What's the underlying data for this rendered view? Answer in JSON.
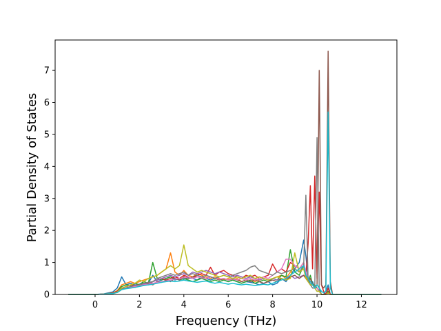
{
  "chart_data": {
    "type": "line",
    "title": "",
    "xlabel": "Frequency (THz)",
    "ylabel": "Partial Density of States",
    "xlim": [
      -1.8,
      13.6
    ],
    "ylim": [
      0,
      7.95
    ],
    "xticks": [
      0,
      2,
      4,
      6,
      8,
      10,
      12
    ],
    "yticks": [
      0,
      1,
      2,
      3,
      4,
      5,
      6,
      7
    ],
    "grid": false,
    "legend": "none",
    "x": [
      -1.2,
      0.0,
      0.4,
      0.8,
      1.0,
      1.2,
      1.4,
      1.6,
      1.8,
      2.0,
      2.2,
      2.4,
      2.6,
      2.8,
      3.0,
      3.2,
      3.4,
      3.6,
      3.8,
      4.0,
      4.2,
      4.4,
      4.6,
      4.8,
      5.0,
      5.2,
      5.4,
      5.6,
      5.8,
      6.0,
      6.2,
      6.4,
      6.6,
      6.8,
      7.0,
      7.2,
      7.4,
      7.6,
      7.8,
      8.0,
      8.2,
      8.4,
      8.6,
      8.8,
      9.0,
      9.2,
      9.4,
      9.5,
      9.6,
      9.7,
      9.8,
      9.9,
      10.0,
      10.1,
      10.2,
      10.3,
      10.4,
      10.5,
      10.6,
      10.7,
      10.8,
      11.0,
      12.0,
      12.9
    ],
    "series": [
      {
        "color": "#1f77b4",
        "values": [
          0,
          0,
          0.02,
          0.08,
          0.2,
          0.55,
          0.3,
          0.35,
          0.3,
          0.32,
          0.4,
          0.35,
          0.6,
          0.4,
          0.45,
          0.5,
          0.55,
          0.45,
          0.5,
          0.48,
          0.52,
          0.5,
          0.45,
          0.55,
          0.5,
          0.45,
          0.5,
          0.48,
          0.45,
          0.4,
          0.45,
          0.4,
          0.35,
          0.4,
          0.38,
          0.35,
          0.3,
          0.35,
          0.4,
          0.3,
          0.35,
          0.5,
          0.4,
          0.6,
          0.8,
          1.0,
          1.7,
          1.2,
          0.5,
          0.3,
          0.4,
          0.2,
          0.3,
          0.2,
          0,
          0,
          0.1,
          0.3,
          0,
          0,
          0,
          0,
          0,
          0
        ]
      },
      {
        "color": "#ff7f0e",
        "values": [
          0,
          0,
          0.01,
          0.05,
          0.12,
          0.3,
          0.35,
          0.4,
          0.35,
          0.4,
          0.45,
          0.5,
          0.55,
          0.6,
          0.7,
          0.8,
          1.3,
          0.7,
          0.6,
          0.75,
          0.6,
          0.55,
          0.65,
          0.6,
          0.55,
          0.5,
          0.55,
          0.5,
          0.45,
          0.5,
          0.45,
          0.5,
          0.4,
          0.45,
          0.5,
          0.4,
          0.45,
          0.5,
          0.45,
          0.5,
          0.55,
          0.6,
          0.5,
          0.7,
          0.9,
          0.8,
          1.0,
          0.6,
          0.4,
          0.5,
          0.3,
          0.2,
          0.2,
          0.1,
          0,
          0,
          0,
          0.1,
          0,
          0,
          0,
          0,
          0,
          0
        ]
      },
      {
        "color": "#2ca02c",
        "values": [
          0,
          0,
          0.01,
          0.04,
          0.1,
          0.25,
          0.3,
          0.28,
          0.35,
          0.3,
          0.4,
          0.35,
          1.0,
          0.5,
          0.45,
          0.5,
          0.55,
          0.5,
          0.45,
          0.5,
          0.45,
          0.4,
          0.45,
          0.5,
          0.45,
          0.4,
          0.45,
          0.4,
          0.45,
          0.4,
          0.45,
          0.4,
          0.35,
          0.4,
          0.45,
          0.35,
          0.4,
          0.45,
          0.4,
          0.5,
          0.45,
          0.6,
          0.55,
          1.4,
          0.7,
          0.6,
          0.9,
          0.5,
          0.4,
          0.6,
          0.3,
          0.3,
          0.2,
          0.1,
          0,
          0,
          0,
          0.1,
          0,
          0,
          0,
          0,
          0,
          0
        ]
      },
      {
        "color": "#d62728",
        "values": [
          0,
          0,
          0.01,
          0.04,
          0.1,
          0.2,
          0.25,
          0.3,
          0.28,
          0.3,
          0.35,
          0.3,
          0.4,
          0.45,
          0.5,
          0.45,
          0.5,
          0.55,
          0.5,
          0.6,
          0.55,
          0.5,
          0.6,
          0.65,
          0.6,
          0.85,
          0.6,
          0.7,
          0.75,
          0.65,
          0.6,
          0.55,
          0.5,
          0.6,
          0.55,
          0.6,
          0.5,
          0.55,
          0.6,
          0.95,
          0.7,
          0.8,
          0.7,
          1.0,
          0.9,
          0.8,
          1.0,
          0.6,
          1.6,
          3.4,
          0.8,
          3.7,
          0.5,
          3.2,
          0.3,
          0.1,
          0,
          0.2,
          0,
          0,
          0,
          0,
          0,
          0
        ]
      },
      {
        "color": "#9467bd",
        "values": [
          0,
          0,
          0.01,
          0.03,
          0.08,
          0.2,
          0.25,
          0.22,
          0.3,
          0.28,
          0.32,
          0.35,
          0.4,
          0.45,
          0.5,
          0.55,
          0.6,
          0.55,
          0.6,
          0.65,
          0.6,
          0.7,
          0.65,
          0.7,
          0.75,
          0.7,
          0.65,
          0.7,
          0.65,
          0.6,
          0.55,
          0.6,
          0.55,
          0.5,
          0.55,
          0.5,
          0.45,
          0.5,
          0.45,
          0.5,
          0.45,
          0.5,
          0.45,
          0.6,
          0.5,
          0.55,
          0.6,
          0.5,
          0.4,
          0.3,
          0.3,
          0.2,
          0.1,
          0.1,
          0,
          0,
          0,
          0.05,
          0,
          0,
          0,
          0,
          0,
          0
        ]
      },
      {
        "color": "#8c564b",
        "values": [
          0,
          0,
          0.01,
          0.03,
          0.08,
          0.15,
          0.2,
          0.25,
          0.22,
          0.3,
          0.28,
          0.35,
          0.3,
          0.4,
          0.38,
          0.45,
          0.4,
          0.5,
          0.45,
          0.55,
          0.5,
          0.55,
          0.6,
          0.55,
          0.5,
          0.55,
          0.5,
          0.45,
          0.5,
          0.45,
          0.5,
          0.45,
          0.4,
          0.45,
          0.4,
          0.45,
          0.4,
          0.35,
          0.4,
          0.45,
          0.4,
          0.5,
          0.45,
          0.55,
          0.6,
          0.5,
          0.6,
          0.5,
          0.4,
          0.5,
          0.3,
          0.2,
          0.3,
          7.0,
          0.3,
          0.2,
          0.3,
          7.6,
          0.4,
          0,
          0,
          0,
          0,
          0
        ]
      },
      {
        "color": "#e377c2",
        "values": [
          0,
          0,
          0.01,
          0.03,
          0.07,
          0.15,
          0.2,
          0.22,
          0.25,
          0.28,
          0.3,
          0.32,
          0.35,
          0.38,
          0.4,
          0.42,
          0.45,
          0.48,
          0.5,
          0.52,
          0.55,
          0.5,
          0.55,
          0.52,
          0.5,
          0.55,
          0.5,
          0.48,
          0.5,
          0.45,
          0.48,
          0.45,
          0.5,
          0.45,
          0.5,
          0.45,
          0.5,
          0.55,
          0.5,
          0.6,
          0.7,
          0.8,
          1.1,
          1.1,
          0.9,
          0.8,
          1.0,
          0.7,
          0.5,
          0.4,
          0.3,
          0.2,
          0.2,
          0.1,
          0,
          0,
          0,
          0.05,
          0,
          0,
          0,
          0,
          0,
          0
        ]
      },
      {
        "color": "#7f7f7f",
        "values": [
          0,
          0,
          0.01,
          0.03,
          0.07,
          0.18,
          0.2,
          0.25,
          0.28,
          0.3,
          0.35,
          0.38,
          0.4,
          0.5,
          0.55,
          0.6,
          0.65,
          0.6,
          0.65,
          0.7,
          0.6,
          0.65,
          0.6,
          0.55,
          0.6,
          0.55,
          0.5,
          0.55,
          0.6,
          0.55,
          0.6,
          0.65,
          0.7,
          0.75,
          0.85,
          0.9,
          0.75,
          0.7,
          0.65,
          0.6,
          0.7,
          0.65,
          0.7,
          0.75,
          0.8,
          0.7,
          0.9,
          3.1,
          0.4,
          0.3,
          0.2,
          0.2,
          4.9,
          0.1,
          0,
          0,
          0,
          0.05,
          0,
          0,
          0,
          0,
          0,
          0
        ]
      },
      {
        "color": "#bcbd22",
        "values": [
          0,
          0,
          0.01,
          0.03,
          0.07,
          0.2,
          0.25,
          0.3,
          0.35,
          0.45,
          0.4,
          0.5,
          0.55,
          0.6,
          0.7,
          0.8,
          0.9,
          0.8,
          0.9,
          1.55,
          0.9,
          0.8,
          0.7,
          0.75,
          0.7,
          0.65,
          0.6,
          0.55,
          0.6,
          0.55,
          0.5,
          0.55,
          0.5,
          0.55,
          0.6,
          0.5,
          0.55,
          0.5,
          0.45,
          0.5,
          0.55,
          0.5,
          0.45,
          0.5,
          1.3,
          0.7,
          0.8,
          0.5,
          0.4,
          0.3,
          0.3,
          0.2,
          0.1,
          0.1,
          0,
          0,
          0,
          0.05,
          0,
          0,
          0,
          0,
          0,
          0
        ]
      },
      {
        "color": "#17becf",
        "values": [
          0,
          0,
          0.01,
          0.03,
          0.06,
          0.15,
          0.18,
          0.2,
          0.22,
          0.25,
          0.28,
          0.3,
          0.32,
          0.35,
          0.38,
          0.4,
          0.42,
          0.4,
          0.42,
          0.45,
          0.42,
          0.4,
          0.38,
          0.4,
          0.42,
          0.38,
          0.35,
          0.38,
          0.35,
          0.32,
          0.35,
          0.32,
          0.3,
          0.32,
          0.3,
          0.28,
          0.3,
          0.32,
          0.3,
          0.35,
          0.4,
          0.45,
          0.5,
          0.6,
          0.7,
          0.8,
          0.9,
          0.6,
          0.5,
          0.4,
          0.3,
          0.2,
          0.3,
          0.2,
          0.1,
          0.05,
          0.1,
          5.7,
          0.2,
          0,
          0,
          0,
          0,
          0
        ]
      }
    ]
  }
}
